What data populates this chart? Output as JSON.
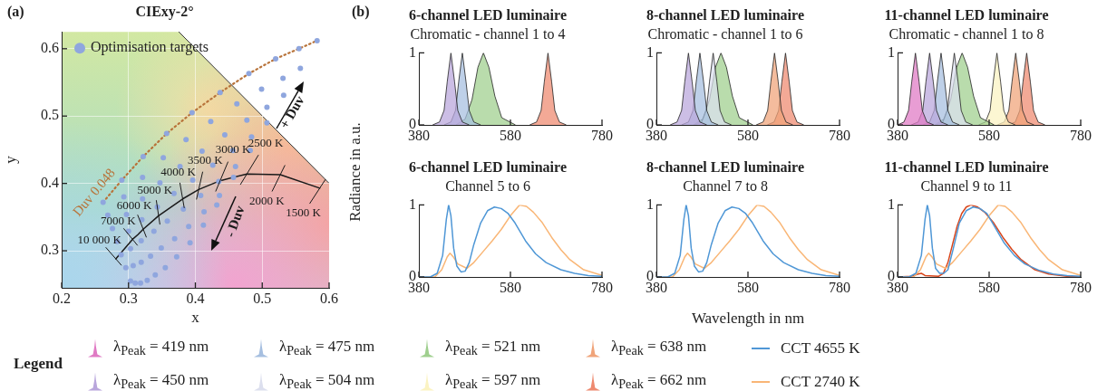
{
  "chart_data": [
    {
      "type": "scatter",
      "title": "CIExy-2°",
      "xlabel": "x",
      "ylabel": "y",
      "xlim": [
        0.2,
        0.6
      ],
      "ylim": [
        0.245,
        0.625
      ],
      "xticks": [
        0.2,
        0.3,
        0.4,
        0.5,
        0.6
      ],
      "yticks": [
        0.3,
        0.4,
        0.5,
        0.6
      ],
      "grid": true,
      "legend": "top left",
      "series": [
        {
          "name": "Optimisation targets",
          "color": "#8fa6de",
          "marker": "circle",
          "x": [
            0.303,
            0.296,
            0.289,
            0.283,
            0.276,
            0.269,
            0.262,
            0.31,
            0.307,
            0.303,
            0.3,
            0.297,
            0.293,
            0.29,
            0.318,
            0.319,
            0.319,
            0.32,
            0.321,
            0.321,
            0.322,
            0.328,
            0.333,
            0.338,
            0.343,
            0.347,
            0.352,
            0.357,
            0.34,
            0.349,
            0.358,
            0.368,
            0.377,
            0.386,
            0.395,
            0.355,
            0.369,
            0.382,
            0.396,
            0.41,
            0.423,
            0.437,
            0.372,
            0.39,
            0.408,
            0.426,
            0.444,
            0.462,
            0.48,
            0.392,
            0.413,
            0.435,
            0.456,
            0.477,
            0.499,
            0.52,
            0.412,
            0.436,
            0.46,
            0.484,
            0.507,
            0.531,
            0.555,
            0.432,
            0.457,
            0.482,
            0.507,
            0.532,
            0.557,
            0.582
          ],
          "values": [
            0.255,
            0.275,
            0.294,
            0.314,
            0.333,
            0.353,
            0.372,
            0.252,
            0.278,
            0.303,
            0.329,
            0.354,
            0.38,
            0.405,
            0.252,
            0.283,
            0.315,
            0.346,
            0.377,
            0.409,
            0.44,
            0.256,
            0.292,
            0.329,
            0.365,
            0.401,
            0.438,
            0.474,
            0.264,
            0.304,
            0.344,
            0.385,
            0.425,
            0.465,
            0.505,
            0.275,
            0.318,
            0.362,
            0.405,
            0.448,
            0.492,
            0.535,
            0.291,
            0.336,
            0.382,
            0.427,
            0.472,
            0.518,
            0.563,
            0.312,
            0.358,
            0.403,
            0.449,
            0.494,
            0.54,
            0.585,
            0.338,
            0.382,
            0.425,
            0.469,
            0.513,
            0.556,
            0.6,
            0.368,
            0.409,
            0.449,
            0.49,
            0.531,
            0.571,
            0.612
          ]
        },
        {
          "type": "line",
          "color": "#1a1a1a",
          "x": [
            0.281,
            0.306,
            0.314,
            0.322,
            0.345,
            0.381,
            0.405,
            0.437,
            0.477,
            0.527,
            0.586
          ],
          "values": [
            0.288,
            0.317,
            0.324,
            0.332,
            0.352,
            0.377,
            0.391,
            0.404,
            0.414,
            0.413,
            0.393
          ]
        },
        {
          "type": "line",
          "name": "Duv 0.048",
          "color": "#b8733a",
          "line_style": "dotted",
          "x": [
            0.262,
            0.29,
            0.322,
            0.357,
            0.395,
            0.437,
            0.48,
            0.52,
            0.555,
            0.582
          ],
          "values": [
            0.372,
            0.405,
            0.44,
            0.474,
            0.505,
            0.535,
            0.563,
            0.585,
            0.6,
            0.612
          ]
        }
      ],
      "annotations": [
        "(a)",
        "+ Duv",
        "- Duv",
        {
          "text": "10 000 K",
          "x": 0.281,
          "y": 0.288
        },
        {
          "text": "7000 K",
          "x": 0.306,
          "y": 0.317
        },
        {
          "text": "6000 K",
          "x": 0.322,
          "y": 0.332
        },
        {
          "text": "5000 K",
          "x": 0.345,
          "y": 0.352
        },
        {
          "text": "4000 K",
          "x": 0.381,
          "y": 0.377
        },
        {
          "text": "3500 K",
          "x": 0.405,
          "y": 0.391
        },
        {
          "text": "3000 K",
          "x": 0.437,
          "y": 0.404
        },
        {
          "text": "2500 K",
          "x": 0.477,
          "y": 0.414
        },
        {
          "text": "2000 K",
          "x": 0.527,
          "y": 0.413
        },
        {
          "text": "1500 K",
          "x": 0.586,
          "y": 0.393
        }
      ]
    },
    {
      "type": "area",
      "title": "6-channel LED luminaire",
      "subtitle": "Chromatic - channel 1 to 4",
      "legend": "bottom",
      "ylabel": "Radiance in a.u.",
      "annotations": [
        "(b)"
      ],
      "xlim": [
        380,
        780
      ],
      "ylim": [
        0,
        1
      ],
      "xticks": [
        380,
        580,
        780
      ],
      "yticks": [
        0,
        1
      ],
      "series": [
        {
          "name": "λ$_{Peak}$ = 450 nm",
          "color": "#b9a6dc",
          "x": [
            410,
            425,
            435,
            442,
            450,
            458,
            465,
            475,
            490
          ],
          "values": [
            0,
            0.04,
            0.2,
            0.6,
            1,
            0.6,
            0.2,
            0.04,
            0
          ]
        },
        {
          "name": "λ$_{Peak}$ = 475 nm",
          "color": "#a6bfe0",
          "x": [
            435,
            450,
            460,
            467,
            475,
            483,
            490,
            500,
            515
          ],
          "values": [
            0,
            0.04,
            0.2,
            0.6,
            1,
            0.6,
            0.2,
            0.04,
            0
          ]
        },
        {
          "name": "λ$_{Peak}$ = 521 nm",
          "color": "#9fcf8e",
          "x": [
            461,
            481,
            496,
            509,
            521,
            533,
            546,
            561,
            591
          ],
          "values": [
            0,
            0.08,
            0.35,
            0.8,
            1,
            0.8,
            0.4,
            0.1,
            0
          ]
        },
        {
          "name": "λ$_{Peak}$ = 662 nm",
          "color": "#ee8a70",
          "x": [
            622,
            637,
            647,
            654,
            662,
            670,
            677,
            687,
            702
          ],
          "values": [
            0,
            0.04,
            0.2,
            0.6,
            1,
            0.6,
            0.2,
            0.04,
            0
          ]
        }
      ]
    },
    {
      "type": "area",
      "title": "8-channel LED luminaire",
      "subtitle": "Chromatic - channel 1 to 6",
      "legend": "bottom",
      "xlim": [
        380,
        780
      ],
      "ylim": [
        0,
        1
      ],
      "xticks": [
        380,
        580,
        780
      ],
      "yticks": [
        0,
        1
      ],
      "series": [
        {
          "name": "λ$_{Peak}$ = 450 nm",
          "color": "#b9a6dc",
          "x": [
            410,
            425,
            435,
            442,
            450,
            458,
            465,
            475,
            490
          ],
          "values": [
            0,
            0.04,
            0.2,
            0.6,
            1,
            0.6,
            0.2,
            0.04,
            0
          ]
        },
        {
          "name": "λ$_{Peak}$ = 475 nm",
          "color": "#a6bfe0",
          "x": [
            435,
            450,
            460,
            467,
            475,
            483,
            490,
            500,
            515
          ],
          "values": [
            0,
            0.04,
            0.2,
            0.6,
            1,
            0.6,
            0.2,
            0.04,
            0
          ]
        },
        {
          "name": "λ$_{Peak}$ = 504 nm",
          "color": "#dcdfee",
          "x": [
            464,
            479,
            489,
            496,
            504,
            512,
            519,
            529,
            544
          ],
          "values": [
            0,
            0.04,
            0.2,
            0.6,
            1,
            0.6,
            0.2,
            0.04,
            0
          ]
        },
        {
          "name": "λ$_{Peak}$ = 521 nm",
          "color": "#9fcf8e",
          "x": [
            461,
            481,
            496,
            509,
            521,
            533,
            546,
            561,
            591
          ],
          "values": [
            0,
            0.08,
            0.35,
            0.8,
            1,
            0.8,
            0.4,
            0.1,
            0
          ]
        },
        {
          "name": "λ$_{Peak}$ = 638 nm",
          "color": "#f0a47a",
          "x": [
            598,
            613,
            623,
            630,
            638,
            646,
            653,
            663,
            678
          ],
          "values": [
            0,
            0.04,
            0.2,
            0.6,
            1,
            0.6,
            0.2,
            0.04,
            0
          ]
        },
        {
          "name": "λ$_{Peak}$ = 662 nm",
          "color": "#ee8a70",
          "x": [
            622,
            637,
            647,
            654,
            662,
            670,
            677,
            687,
            702
          ],
          "values": [
            0,
            0.04,
            0.2,
            0.6,
            1,
            0.6,
            0.2,
            0.04,
            0
          ]
        }
      ]
    },
    {
      "type": "area",
      "title": "11-channel LED luminaire",
      "subtitle": "Chromatic - channel 1 to 8",
      "legend": "bottom",
      "legend_title": "Legend",
      "xlim": [
        380,
        780
      ],
      "ylim": [
        0,
        1
      ],
      "xticks": [
        380,
        580,
        780
      ],
      "yticks": [
        0,
        1
      ],
      "series": [
        {
          "name": "λ$_{Peak}$ = 419 nm",
          "color": "#e07ac4",
          "x": [
            380,
            394,
            404,
            411,
            419,
            427,
            434,
            444,
            459
          ],
          "values": [
            0,
            0.04,
            0.2,
            0.6,
            1,
            0.6,
            0.2,
            0.04,
            0
          ]
        },
        {
          "name": "λ$_{Peak}$ = 450 nm",
          "color": "#b9a6dc",
          "x": [
            410,
            425,
            435,
            442,
            450,
            458,
            465,
            475,
            490
          ],
          "values": [
            0,
            0.04,
            0.2,
            0.6,
            1,
            0.6,
            0.2,
            0.04,
            0
          ]
        },
        {
          "name": "λ$_{Peak}$ = 475 nm",
          "color": "#a6bfe0",
          "x": [
            435,
            450,
            460,
            467,
            475,
            483,
            490,
            500,
            515
          ],
          "values": [
            0,
            0.04,
            0.2,
            0.6,
            1,
            0.6,
            0.2,
            0.04,
            0
          ]
        },
        {
          "name": "λ$_{Peak}$ = 504 nm",
          "color": "#dcdfee",
          "x": [
            464,
            479,
            489,
            496,
            504,
            512,
            519,
            529,
            544
          ],
          "values": [
            0,
            0.04,
            0.2,
            0.6,
            1,
            0.6,
            0.2,
            0.04,
            0
          ]
        },
        {
          "name": "λ$_{Peak}$ = 521 nm",
          "color": "#9fcf8e",
          "x": [
            461,
            481,
            496,
            509,
            521,
            533,
            546,
            561,
            591
          ],
          "values": [
            0,
            0.08,
            0.35,
            0.8,
            1,
            0.8,
            0.4,
            0.1,
            0
          ]
        },
        {
          "name": "λ$_{Peak}$ = 597 nm",
          "color": "#fbf3c2",
          "x": [
            557,
            572,
            582,
            589,
            597,
            605,
            612,
            622,
            637
          ],
          "values": [
            0,
            0.04,
            0.2,
            0.6,
            1,
            0.6,
            0.2,
            0.04,
            0
          ]
        },
        {
          "name": "λ$_{Peak}$ = 638 nm",
          "color": "#f0a47a",
          "x": [
            598,
            613,
            623,
            630,
            638,
            646,
            653,
            663,
            678
          ],
          "values": [
            0,
            0.04,
            0.2,
            0.6,
            1,
            0.6,
            0.2,
            0.04,
            0
          ]
        },
        {
          "name": "λ$_{Peak}$ = 662 nm",
          "color": "#ee8a70",
          "x": [
            622,
            637,
            647,
            654,
            662,
            670,
            677,
            687,
            702
          ],
          "values": [
            0,
            0.04,
            0.2,
            0.6,
            1,
            0.6,
            0.2,
            0.04,
            0
          ]
        }
      ]
    },
    {
      "type": "line",
      "title": "6-channel LED luminaire",
      "subtitle": "Channel 5 to 6",
      "legend": "bottom",
      "xlim": [
        380,
        780
      ],
      "ylim": [
        0,
        1
      ],
      "xticks": [
        380,
        580,
        780
      ],
      "yticks": [
        0,
        1
      ],
      "series": [
        {
          "name": "CCT 4655 K",
          "color": "#4f97d6",
          "x": [
            380,
            405,
            420,
            432,
            440,
            445,
            450,
            456,
            463,
            472,
            481,
            490,
            500,
            515,
            530,
            545,
            560,
            575,
            590,
            613,
            635,
            658,
            690,
            720,
            750,
            780
          ],
          "values": [
            0,
            0,
            0.05,
            0.3,
            0.8,
            1,
            0.85,
            0.4,
            0.15,
            0.07,
            0.08,
            0.2,
            0.45,
            0.75,
            0.92,
            0.97,
            0.95,
            0.88,
            0.75,
            0.5,
            0.32,
            0.2,
            0.1,
            0.05,
            0.02,
            0.01
          ]
        },
        {
          "name": "CCT 2740 K",
          "color": "#f9b676",
          "x": [
            380,
            415,
            430,
            442,
            448,
            455,
            465,
            485,
            500,
            520,
            540,
            560,
            580,
            600,
            615,
            630,
            650,
            670,
            690,
            710,
            740,
            780
          ],
          "values": [
            0,
            0,
            0.1,
            0.28,
            0.33,
            0.28,
            0.18,
            0.12,
            0.2,
            0.35,
            0.5,
            0.66,
            0.85,
            1,
            0.98,
            0.9,
            0.75,
            0.55,
            0.38,
            0.24,
            0.1,
            0.02
          ]
        }
      ]
    },
    {
      "type": "line",
      "title": "8-channel LED luminaire",
      "subtitle": "Channel 7 to 8",
      "legend": "bottom",
      "xlabel": "Wavelength in nm",
      "xlim": [
        380,
        780
      ],
      "ylim": [
        0,
        1
      ],
      "xticks": [
        380,
        580,
        780
      ],
      "yticks": [
        0,
        1
      ],
      "series": [
        {
          "name": "CCT 4655 K",
          "color": "#4f97d6",
          "x": [
            380,
            405,
            420,
            432,
            440,
            445,
            450,
            456,
            463,
            472,
            481,
            490,
            500,
            515,
            530,
            545,
            560,
            575,
            590,
            613,
            635,
            658,
            690,
            720,
            750,
            780
          ],
          "values": [
            0,
            0,
            0.05,
            0.3,
            0.8,
            1,
            0.85,
            0.4,
            0.15,
            0.07,
            0.08,
            0.2,
            0.45,
            0.75,
            0.92,
            0.97,
            0.95,
            0.88,
            0.75,
            0.5,
            0.32,
            0.2,
            0.1,
            0.05,
            0.02,
            0.01
          ]
        },
        {
          "name": "CCT 2740 K",
          "color": "#f9b676",
          "x": [
            380,
            415,
            430,
            442,
            448,
            455,
            465,
            485,
            500,
            520,
            540,
            560,
            580,
            600,
            615,
            630,
            650,
            670,
            690,
            710,
            740,
            780
          ],
          "values": [
            0,
            0,
            0.1,
            0.28,
            0.33,
            0.28,
            0.18,
            0.12,
            0.2,
            0.35,
            0.5,
            0.66,
            0.85,
            1,
            0.98,
            0.9,
            0.75,
            0.55,
            0.38,
            0.24,
            0.1,
            0.02
          ]
        }
      ]
    },
    {
      "type": "line",
      "title": "11-channel LED luminaire",
      "subtitle": "Channel 9 to 11",
      "legend": "bottom",
      "xlim": [
        380,
        780
      ],
      "ylim": [
        0,
        1
      ],
      "xticks": [
        380,
        580,
        780
      ],
      "yticks": [
        0,
        1
      ],
      "series": [
        {
          "name": "CCT 4655 K",
          "color": "#4f97d6",
          "x": [
            380,
            405,
            420,
            432,
            440,
            445,
            450,
            456,
            463,
            472,
            481,
            490,
            500,
            515,
            530,
            545,
            560,
            575,
            590,
            613,
            635,
            658,
            690,
            720,
            750,
            780
          ],
          "values": [
            0,
            0,
            0.05,
            0.3,
            0.8,
            1,
            0.85,
            0.4,
            0.12,
            0.05,
            0.05,
            0.1,
            0.35,
            0.75,
            0.92,
            0.97,
            0.95,
            0.88,
            0.72,
            0.47,
            0.3,
            0.18,
            0.09,
            0.04,
            0.02,
            0.01
          ]
        },
        {
          "name": "CCT 2740 K",
          "color": "#f9b676",
          "x": [
            380,
            415,
            430,
            442,
            448,
            455,
            465,
            485,
            500,
            520,
            540,
            560,
            580,
            600,
            615,
            630,
            650,
            670,
            690,
            710,
            740,
            780
          ],
          "values": [
            0,
            0,
            0.1,
            0.28,
            0.33,
            0.28,
            0.18,
            0.12,
            0.2,
            0.35,
            0.5,
            0.66,
            0.85,
            1,
            0.98,
            0.9,
            0.75,
            0.55,
            0.38,
            0.24,
            0.1,
            0.02
          ]
        },
        {
          "color": "#d9451a",
          "x": [
            380,
            410,
            425,
            432,
            440,
            470,
            480,
            490,
            500,
            510,
            520,
            530,
            540,
            555,
            570,
            590,
            610,
            630,
            650,
            680,
            710,
            750,
            780
          ],
          "values": [
            0,
            0.01,
            0.04,
            0.05,
            0.02,
            0.01,
            0.05,
            0.2,
            0.45,
            0.7,
            0.88,
            0.97,
            1,
            0.97,
            0.9,
            0.75,
            0.55,
            0.38,
            0.24,
            0.1,
            0.04,
            0.01,
            0
          ]
        }
      ]
    }
  ]
}
